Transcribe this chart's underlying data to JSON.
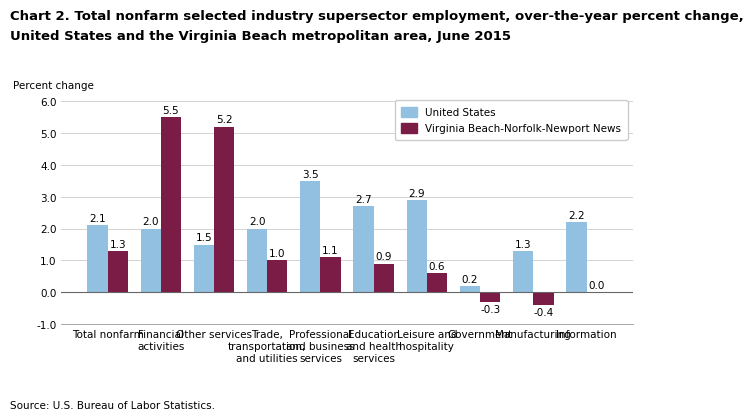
{
  "title_line1": "Chart 2. Total nonfarm selected industry supersector employment, over-the-year percent change,",
  "title_line2": "United States and the Virginia Beach metropolitan area, June 2015",
  "ylabel": "Percent change",
  "source": "Source: U.S. Bureau of Labor Statistics.",
  "categories": [
    "Total nonfarm",
    "Financial\nactivities",
    "Other services",
    "Trade,\ntransportation,\nand utilities",
    "Professional\nand business\nservices",
    "Education\nand health\nservices",
    "Leisure and\nhospitality",
    "Government",
    "Manufacturing",
    "Information"
  ],
  "us_values": [
    2.1,
    2.0,
    1.5,
    2.0,
    3.5,
    2.7,
    2.9,
    0.2,
    1.3,
    2.2
  ],
  "va_values": [
    1.3,
    5.5,
    5.2,
    1.0,
    1.1,
    0.9,
    0.6,
    -0.3,
    -0.4,
    0.0
  ],
  "us_color": "#92C0E0",
  "va_color": "#7B1C46",
  "ylim": [
    -1.0,
    6.2
  ],
  "yticks": [
    -1.0,
    0.0,
    1.0,
    2.0,
    3.0,
    4.0,
    5.0,
    6.0
  ],
  "ytick_labels": [
    "-1.0",
    "0.0",
    "1.0",
    "2.0",
    "3.0",
    "4.0",
    "5.0",
    "6.0"
  ],
  "legend_us": "United States",
  "legend_va": "Virginia Beach-Norfolk-Newport News",
  "bar_width": 0.38,
  "title_fontsize": 9.5,
  "label_fontsize": 7.5,
  "tick_fontsize": 7.5,
  "annotation_fontsize": 7.5
}
